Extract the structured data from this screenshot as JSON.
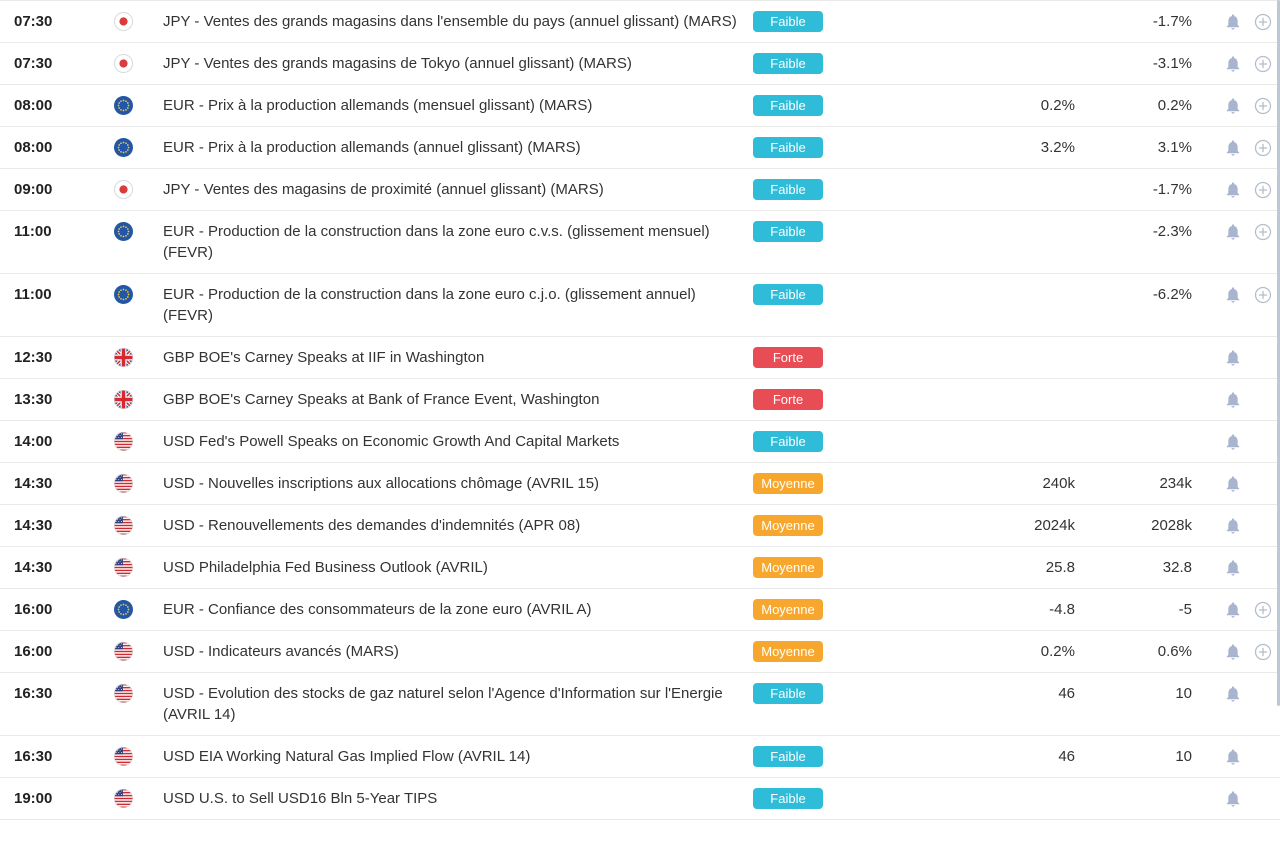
{
  "calendar": {
    "impact_colors": {
      "low": "#2ebcd9",
      "medium": "#f7a72e",
      "high": "#e84c55"
    },
    "icons": {
      "alert": "bell-icon",
      "add": "plus-circle-icon"
    },
    "rows": [
      {
        "time": "07:30",
        "country": "japan",
        "title": "JPY - Ventes des grands magasins dans l'ensemble du pays (annuel glissant) (MARS)",
        "impact_label": "Faible",
        "impact": "low",
        "forecast": "",
        "previous": "-1.7%",
        "add_button": true
      },
      {
        "time": "07:30",
        "country": "japan",
        "title": "JPY - Ventes des grands magasins de Tokyo (annuel glissant) (MARS)",
        "impact_label": "Faible",
        "impact": "low",
        "forecast": "",
        "previous": "-3.1%",
        "add_button": true
      },
      {
        "time": "08:00",
        "country": "eurozone",
        "title": "EUR - Prix à la production allemands (mensuel glissant) (MARS)",
        "impact_label": "Faible",
        "impact": "low",
        "forecast": "0.2%",
        "previous": "0.2%",
        "add_button": true
      },
      {
        "time": "08:00",
        "country": "eurozone",
        "title": "EUR - Prix à la production allemands (annuel glissant) (MARS)",
        "impact_label": "Faible",
        "impact": "low",
        "forecast": "3.2%",
        "previous": "3.1%",
        "add_button": true
      },
      {
        "time": "09:00",
        "country": "japan",
        "title": "JPY - Ventes des magasins de proximité (annuel glissant) (MARS)",
        "impact_label": "Faible",
        "impact": "low",
        "forecast": "",
        "previous": "-1.7%",
        "add_button": true
      },
      {
        "time": "11:00",
        "country": "eurozone",
        "title": "EUR - Production de la construction dans la zone euro c.v.s. (glissement mensuel) (FEVR)",
        "impact_label": "Faible",
        "impact": "low",
        "forecast": "",
        "previous": "-2.3%",
        "add_button": true
      },
      {
        "time": "11:00",
        "country": "eurozone",
        "title": "EUR - Production de la construction dans la zone euro c.j.o. (glissement annuel) (FEVR)",
        "impact_label": "Faible",
        "impact": "low",
        "forecast": "",
        "previous": "-6.2%",
        "add_button": true
      },
      {
        "time": "12:30",
        "country": "uk",
        "title": "GBP BOE's Carney Speaks at IIF in Washington",
        "impact_label": "Forte",
        "impact": "high",
        "forecast": "",
        "previous": "",
        "add_button": false
      },
      {
        "time": "13:30",
        "country": "uk",
        "title": "GBP BOE's Carney Speaks at Bank of France Event, Washington",
        "impact_label": "Forte",
        "impact": "high",
        "forecast": "",
        "previous": "",
        "add_button": false
      },
      {
        "time": "14:00",
        "country": "usa",
        "title": "USD Fed's Powell Speaks on Economic Growth And Capital Markets",
        "impact_label": "Faible",
        "impact": "low",
        "forecast": "",
        "previous": "",
        "add_button": false
      },
      {
        "time": "14:30",
        "country": "usa",
        "title": "USD - Nouvelles inscriptions aux allocations chômage (AVRIL 15)",
        "impact_label": "Moyenne",
        "impact": "medium",
        "forecast": "240k",
        "previous": "234k",
        "add_button": false
      },
      {
        "time": "14:30",
        "country": "usa",
        "title": "USD - Renouvellements des demandes d'indemnités (APR 08)",
        "impact_label": "Moyenne",
        "impact": "medium",
        "forecast": "2024k",
        "previous": "2028k",
        "add_button": false
      },
      {
        "time": "14:30",
        "country": "usa",
        "title": "USD Philadelphia Fed Business Outlook (AVRIL)",
        "impact_label": "Moyenne",
        "impact": "medium",
        "forecast": "25.8",
        "previous": "32.8",
        "add_button": false
      },
      {
        "time": "16:00",
        "country": "eurozone",
        "title": "EUR - Confiance des consommateurs de la zone euro (AVRIL A)",
        "impact_label": "Moyenne",
        "impact": "medium",
        "forecast": "-4.8",
        "previous": "-5",
        "add_button": true
      },
      {
        "time": "16:00",
        "country": "usa",
        "title": "USD - Indicateurs avancés (MARS)",
        "impact_label": "Moyenne",
        "impact": "medium",
        "forecast": "0.2%",
        "previous": "0.6%",
        "add_button": true
      },
      {
        "time": "16:30",
        "country": "usa",
        "title": "USD - Evolution des stocks de gaz naturel selon l'Agence d'Information sur l'Energie (AVRIL 14)",
        "impact_label": "Faible",
        "impact": "low",
        "forecast": "46",
        "previous": "10",
        "add_button": false
      },
      {
        "time": "16:30",
        "country": "usa",
        "title": "USD EIA Working Natural Gas Implied Flow (AVRIL 14)",
        "impact_label": "Faible",
        "impact": "low",
        "forecast": "46",
        "previous": "10",
        "add_button": false
      },
      {
        "time": "19:00",
        "country": "usa",
        "title": "USD U.S. to Sell USD16 Bln 5-Year TIPS",
        "impact_label": "Faible",
        "impact": "low",
        "forecast": "",
        "previous": "",
        "add_button": false
      }
    ]
  }
}
